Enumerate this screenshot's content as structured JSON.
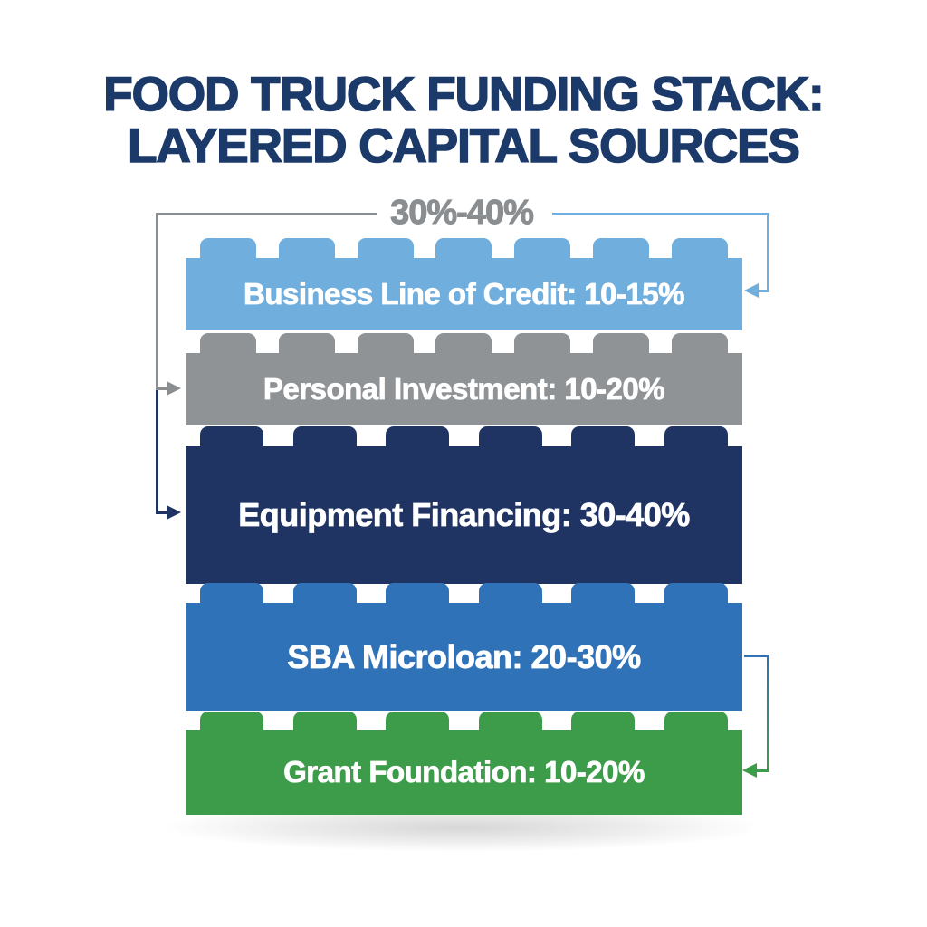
{
  "title": {
    "line1": "FOOD TRUCK FUNDING STACK:",
    "line2": "LAYERED CAPITAL SOURCES",
    "color": "#1C3A69"
  },
  "annotation": {
    "label": "30%-40%",
    "color": "#8A8E91"
  },
  "layers": [
    {
      "label": "Business Line of Credit: 10-15%",
      "color": "#6FAEDD",
      "studs": 7
    },
    {
      "label": "Personal Investment: 10-20%",
      "color": "#8F9396",
      "studs": 7
    },
    {
      "label": "Equipment Financing: 30-40%",
      "color": "#1F3462",
      "studs": 6
    },
    {
      "label": "SBA Microloan: 20-30%",
      "color": "#2F72B8",
      "studs": 6
    },
    {
      "label": "Grant Foundation: 10-20%",
      "color": "#3D9C49",
      "studs": 6
    }
  ],
  "connectors": {
    "gray": "#8A8E91",
    "light_blue": "#6FAEDD",
    "navy": "#1F3462",
    "blue": "#2F72B8",
    "green": "#3D9C49"
  }
}
